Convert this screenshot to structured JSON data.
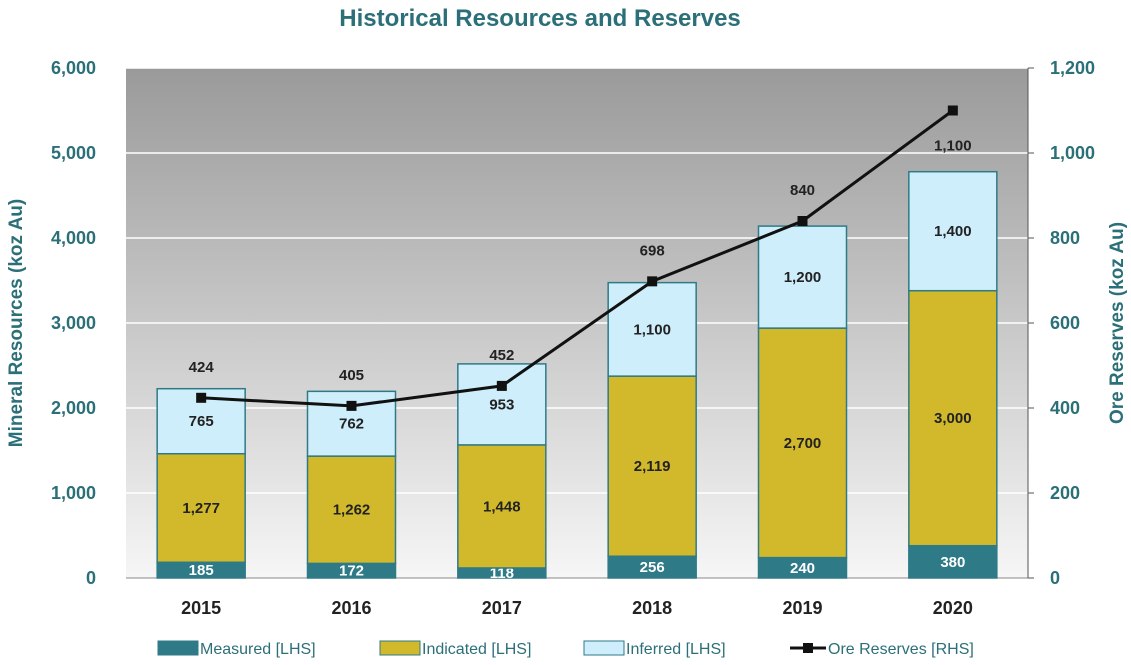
{
  "chart_data": {
    "type": "bar",
    "stacked": true,
    "title": "Historical Resources and Reserves",
    "categories": [
      "2015",
      "2016",
      "2017",
      "2018",
      "2019",
      "2020"
    ],
    "ylabel_left": "Mineral Resources (koz Au)",
    "ylabel_right": "Ore Reserves (koz Au)",
    "ylim_left": [
      0,
      6000
    ],
    "ylim_right": [
      0,
      1200
    ],
    "yticks_left": [
      "0",
      "1,000",
      "2,000",
      "3,000",
      "4,000",
      "5,000",
      "6,000"
    ],
    "yticks_right": [
      "0",
      "200",
      "400",
      "600",
      "800",
      "1,000",
      "1,200"
    ],
    "series": [
      {
        "name": "Measured [LHS]",
        "axis": "left",
        "color": "#2f7a87",
        "label_color": "#ffffff",
        "values": [
          185,
          172,
          118,
          256,
          240,
          380
        ],
        "labels": [
          "185",
          "172",
          "118",
          "256",
          "240",
          "380"
        ]
      },
      {
        "name": "Indicated [LHS]",
        "axis": "left",
        "color": "#d2b92c",
        "label_color": "#222222",
        "values": [
          1277,
          1262,
          1448,
          2119,
          2700,
          3000
        ],
        "labels": [
          "1,277",
          "1,262",
          "1,448",
          "2,119",
          "2,700",
          "3,000"
        ]
      },
      {
        "name": "Inferred [LHS]",
        "axis": "left",
        "color": "#cdeefa",
        "label_color": "#222222",
        "values": [
          765,
          762,
          953,
          1100,
          1200,
          1400
        ],
        "labels": [
          "765",
          "762",
          "953",
          "1,100",
          "1,200",
          "1,400"
        ]
      },
      {
        "name": "Ore Reserves [RHS]",
        "axis": "right",
        "type": "line",
        "color": "#111111",
        "values": [
          424,
          405,
          452,
          698,
          840,
          1100
        ],
        "labels": [
          "424",
          "405",
          "452",
          "698",
          "840",
          "1,100"
        ]
      }
    ],
    "grid": true,
    "legend": "bottom"
  }
}
